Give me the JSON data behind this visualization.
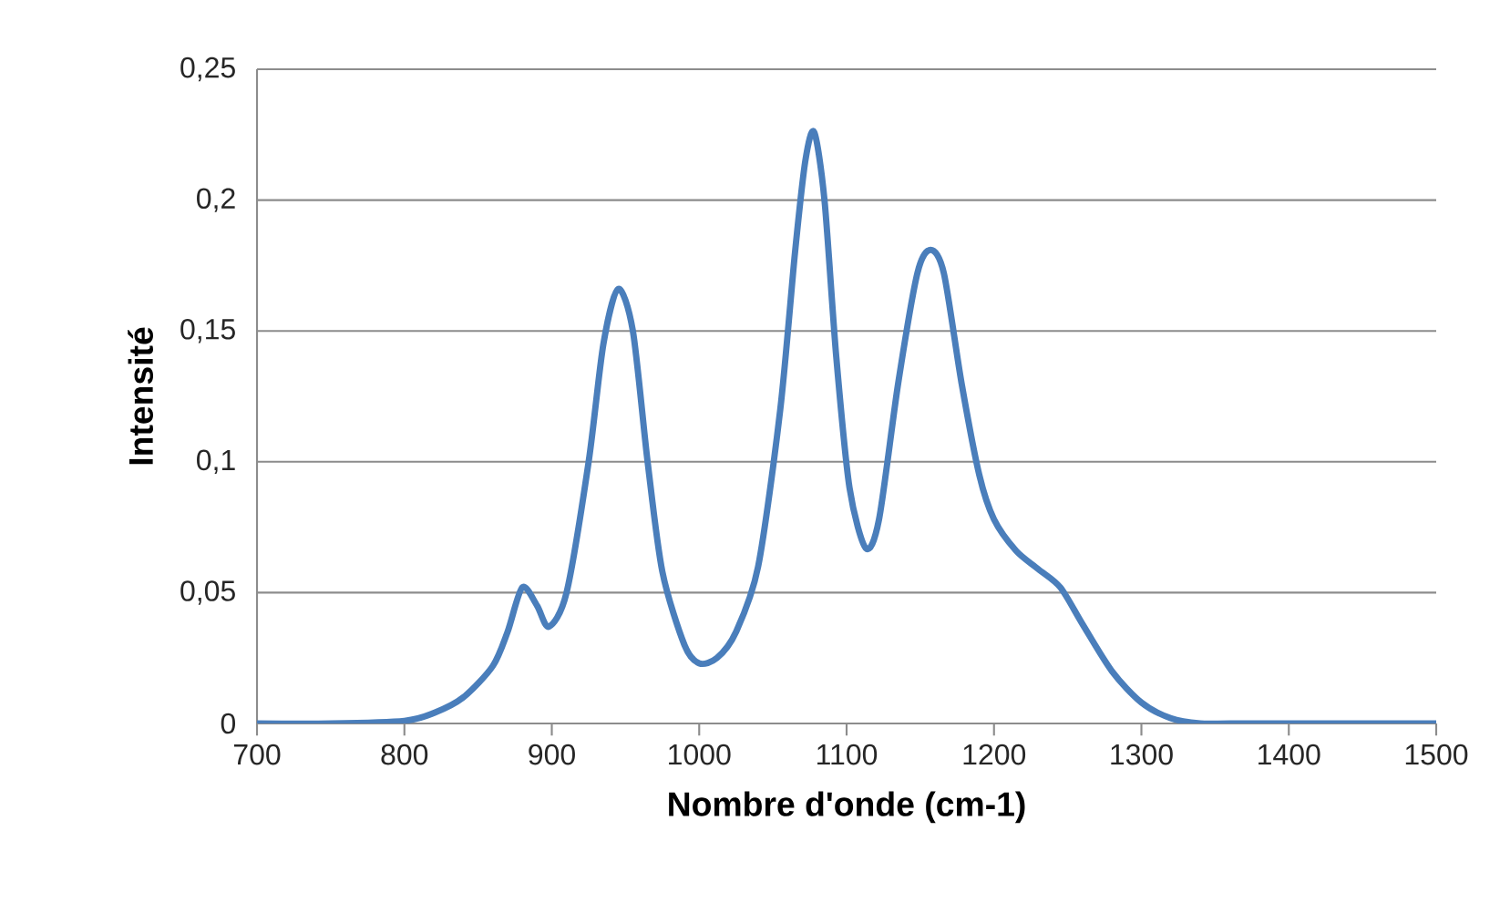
{
  "chart_data": {
    "type": "line",
    "xlabel": "Nombre d'onde (cm-1)",
    "ylabel": "Intensité",
    "x": [
      700,
      750,
      800,
      820,
      840,
      860,
      870,
      880,
      890,
      898,
      910,
      925,
      935,
      945,
      955,
      965,
      975,
      990,
      1000,
      1012,
      1025,
      1040,
      1055,
      1065,
      1072,
      1078,
      1085,
      1093,
      1102,
      1113,
      1122,
      1135,
      1148,
      1157,
      1166,
      1178,
      1190,
      1200,
      1215,
      1230,
      1245,
      1260,
      1280,
      1300,
      1320,
      1340,
      1360,
      1400,
      1450,
      1500
    ],
    "series": [
      {
        "color": "#4a7ebb",
        "values": [
          0,
          0,
          0.001,
          0.004,
          0.01,
          0.022,
          0.035,
          0.052,
          0.045,
          0.037,
          0.05,
          0.1,
          0.145,
          0.166,
          0.15,
          0.1,
          0.058,
          0.03,
          0.023,
          0.025,
          0.035,
          0.06,
          0.12,
          0.18,
          0.215,
          0.226,
          0.2,
          0.14,
          0.09,
          0.067,
          0.078,
          0.13,
          0.172,
          0.181,
          0.172,
          0.13,
          0.095,
          0.078,
          0.066,
          0.059,
          0.052,
          0.038,
          0.02,
          0.008,
          0.002,
          0,
          0,
          0,
          0,
          0
        ]
      }
    ],
    "xlim": [
      700,
      1500
    ],
    "ylim": [
      0,
      0.25
    ],
    "xticks": [
      700,
      800,
      900,
      1000,
      1100,
      1200,
      1300,
      1400,
      1500
    ],
    "yticks": [
      0,
      {
        "value": 0.05,
        "label": "0,05"
      },
      {
        "value": 0.1,
        "label": "0,1"
      },
      {
        "value": 0.15,
        "label": "0,15"
      },
      {
        "value": 0.2,
        "label": "0,2"
      },
      {
        "value": 0.25,
        "label": "0,25"
      }
    ],
    "grid": "y",
    "marker": "none",
    "line_style": "solid"
  }
}
